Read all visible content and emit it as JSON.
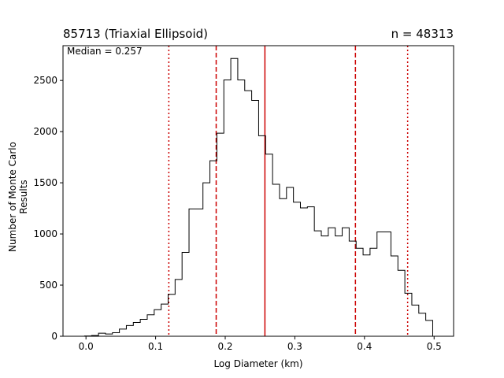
{
  "chart_data": {
    "type": "histogram",
    "title_left": "85713 (Triaxial Ellipsoid)",
    "title_right": "n = 48313",
    "annotation": "Median = 0.257",
    "xlabel": "Log Diameter (km)",
    "ylabel": "Number of Monte Carlo Results",
    "xlim": [
      -0.033,
      0.528
    ],
    "ylim": [
      0,
      2840
    ],
    "xticks": [
      0.0,
      0.1,
      0.2,
      0.3,
      0.4,
      0.5
    ],
    "xtick_labels": [
      "0.0",
      "0.1",
      "0.2",
      "0.3",
      "0.4",
      "0.5"
    ],
    "yticks": [
      0,
      500,
      1000,
      1500,
      2000,
      2500
    ],
    "ytick_labels": [
      "0",
      "500",
      "1000",
      "1500",
      "2000",
      "2500"
    ],
    "bin_edges": [
      -0.002,
      0.008,
      0.018,
      0.028,
      0.038,
      0.048,
      0.058,
      0.068,
      0.078,
      0.088,
      0.098,
      0.108,
      0.118,
      0.128,
      0.138,
      0.148,
      0.158,
      0.168,
      0.178,
      0.188,
      0.198,
      0.208,
      0.218,
      0.228,
      0.238,
      0.248,
      0.258,
      0.268,
      0.278,
      0.288,
      0.298,
      0.308,
      0.318,
      0.328,
      0.338,
      0.348,
      0.358,
      0.368,
      0.378,
      0.388,
      0.398,
      0.408,
      0.418,
      0.428,
      0.438,
      0.448,
      0.458,
      0.468,
      0.478,
      0.488,
      0.498,
      0.508
    ],
    "counts": [
      3,
      8,
      30,
      22,
      35,
      70,
      105,
      135,
      165,
      210,
      260,
      315,
      410,
      555,
      820,
      1245,
      1245,
      1500,
      1715,
      1985,
      2505,
      2715,
      2505,
      2400,
      2305,
      1960,
      1780,
      1485,
      1345,
      1455,
      1310,
      1255,
      1265,
      1030,
      980,
      1060,
      980,
      1060,
      930,
      860,
      795,
      860,
      1020,
      1020,
      785,
      645,
      420,
      305,
      225,
      155,
      0
    ],
    "reference_lines": [
      {
        "x": 0.119,
        "style": "dotted",
        "color": "#cc0000"
      },
      {
        "x": 0.187,
        "style": "dashed",
        "color": "#cc0000"
      },
      {
        "x": 0.257,
        "style": "solid",
        "color": "#cc0000"
      },
      {
        "x": 0.387,
        "style": "dashed",
        "color": "#cc0000"
      },
      {
        "x": 0.462,
        "style": "dotted",
        "color": "#cc0000"
      }
    ],
    "colors": {
      "histogram": "#000000",
      "lines": "#cc0000"
    }
  }
}
